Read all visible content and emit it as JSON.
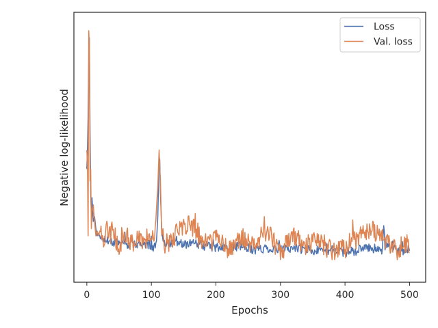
{
  "chart_data": {
    "type": "line",
    "xlabel": "Epochs",
    "ylabel": "Negative log-likelihood",
    "xlim": [
      -20,
      525
    ],
    "ylim": [
      0.0,
      1.0
    ],
    "x_ticks": [
      0,
      100,
      200,
      300,
      400,
      500
    ],
    "x_tick_labels": [
      "0",
      "100",
      "200",
      "300",
      "400",
      "500"
    ],
    "y_ticks_shown": false,
    "grid": false,
    "legend_position": "top-right",
    "series": [
      {
        "name": "Loss",
        "color": "#4c72b0",
        "points": [
          [
            0,
            0.4
          ],
          [
            1,
            0.48
          ],
          [
            2,
            0.62
          ],
          [
            3,
            0.85
          ],
          [
            4,
            0.95
          ],
          [
            5,
            0.55
          ],
          [
            6,
            0.3
          ],
          [
            7,
            0.22
          ],
          [
            8,
            0.28
          ],
          [
            10,
            0.18
          ],
          [
            12,
            0.2
          ],
          [
            14,
            0.15
          ],
          [
            16,
            0.12
          ],
          [
            18,
            0.13
          ],
          [
            20,
            0.12
          ],
          [
            25,
            0.11
          ],
          [
            30,
            0.1
          ],
          [
            35,
            0.11
          ],
          [
            40,
            0.09
          ],
          [
            50,
            0.1
          ],
          [
            60,
            0.08
          ],
          [
            70,
            0.09
          ],
          [
            80,
            0.08
          ],
          [
            90,
            0.09
          ],
          [
            100,
            0.08
          ],
          [
            105,
            0.07
          ],
          [
            108,
            0.1
          ],
          [
            110,
            0.2
          ],
          [
            112,
            0.45
          ],
          [
            113,
            0.44
          ],
          [
            114,
            0.3
          ],
          [
            116,
            0.15
          ],
          [
            118,
            0.1
          ],
          [
            120,
            0.09
          ],
          [
            140,
            0.08
          ],
          [
            160,
            0.09
          ],
          [
            180,
            0.08
          ],
          [
            200,
            0.07
          ],
          [
            220,
            0.07
          ],
          [
            240,
            0.08
          ],
          [
            260,
            0.06
          ],
          [
            280,
            0.07
          ],
          [
            300,
            0.06
          ],
          [
            320,
            0.07
          ],
          [
            340,
            0.06
          ],
          [
            360,
            0.06
          ],
          [
            380,
            0.06
          ],
          [
            400,
            0.05
          ],
          [
            420,
            0.06
          ],
          [
            440,
            0.07
          ],
          [
            458,
            0.06
          ],
          [
            460,
            0.15
          ],
          [
            462,
            0.08
          ],
          [
            480,
            0.06
          ],
          [
            500,
            0.06
          ]
        ]
      },
      {
        "name": "Val. loss",
        "color": "#dd8452",
        "points": [
          [
            0,
            0.48
          ],
          [
            1,
            0.42
          ],
          [
            2,
            0.12
          ],
          [
            3,
            0.98
          ],
          [
            4,
            0.92
          ],
          [
            5,
            0.35
          ],
          [
            6,
            0.4
          ],
          [
            7,
            0.15
          ],
          [
            8,
            0.22
          ],
          [
            10,
            0.25
          ],
          [
            12,
            0.18
          ],
          [
            14,
            0.12
          ],
          [
            16,
            0.14
          ],
          [
            18,
            0.12
          ],
          [
            20,
            0.14
          ],
          [
            25,
            0.08
          ],
          [
            30,
            0.16
          ],
          [
            35,
            0.11
          ],
          [
            40,
            0.14
          ],
          [
            50,
            0.07
          ],
          [
            60,
            0.13
          ],
          [
            70,
            0.08
          ],
          [
            80,
            0.12
          ],
          [
            90,
            0.09
          ],
          [
            100,
            0.12
          ],
          [
            105,
            0.08
          ],
          [
            108,
            0.24
          ],
          [
            110,
            0.33
          ],
          [
            112,
            0.48
          ],
          [
            113,
            0.4
          ],
          [
            114,
            0.36
          ],
          [
            116,
            0.12
          ],
          [
            118,
            0.15
          ],
          [
            120,
            0.08
          ],
          [
            140,
            0.13
          ],
          [
            160,
            0.17
          ],
          [
            180,
            0.09
          ],
          [
            200,
            0.1
          ],
          [
            220,
            0.06
          ],
          [
            240,
            0.11
          ],
          [
            260,
            0.09
          ],
          [
            280,
            0.14
          ],
          [
            300,
            0.05
          ],
          [
            320,
            0.12
          ],
          [
            340,
            0.08
          ],
          [
            360,
            0.1
          ],
          [
            380,
            0.05
          ],
          [
            400,
            0.07
          ],
          [
            420,
            0.11
          ],
          [
            440,
            0.14
          ],
          [
            458,
            0.12
          ],
          [
            460,
            0.07
          ],
          [
            462,
            0.1
          ],
          [
            480,
            0.05
          ],
          [
            500,
            0.09
          ]
        ]
      }
    ]
  }
}
